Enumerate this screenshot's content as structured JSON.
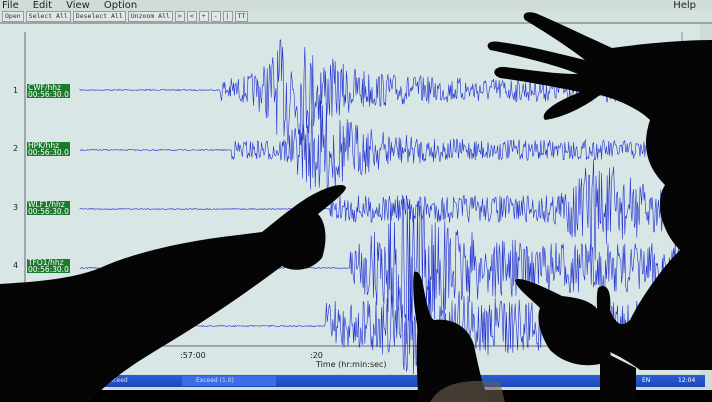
{
  "menu": {
    "items": [
      "File",
      "Edit",
      "View",
      "Option"
    ],
    "help": "Help"
  },
  "toolbar": {
    "buttons": [
      "Open",
      "Select All",
      "Deselect All",
      "Unzoom All",
      ">",
      "<",
      "+",
      "-",
      "|",
      "TT"
    ]
  },
  "channels": [
    {
      "row": "1",
      "name": "CWF/hhz",
      "time": "00:56:30.0"
    },
    {
      "row": "2",
      "name": "HPK/hhz",
      "time": "00:56:30.0"
    },
    {
      "row": "3",
      "name": "WLF1/hhz",
      "time": "00:56:30.0"
    },
    {
      "row": "4",
      "name": "TFO1/hhz",
      "time": "00:56:30.0"
    }
  ],
  "axis": {
    "ticks": [
      ":57:00",
      ":20"
    ],
    "label": "Time (hr:min:sec)"
  },
  "taskbar": {
    "tasks": [
      "Exceed",
      "Exceed (1.0)"
    ],
    "lang": "EN",
    "clock": "12:04"
  },
  "colors": {
    "trace": "#2030d0",
    "label_bg": "#1c7a2c",
    "taskbar": "#2a5fd8",
    "silhouette": "#050505"
  }
}
